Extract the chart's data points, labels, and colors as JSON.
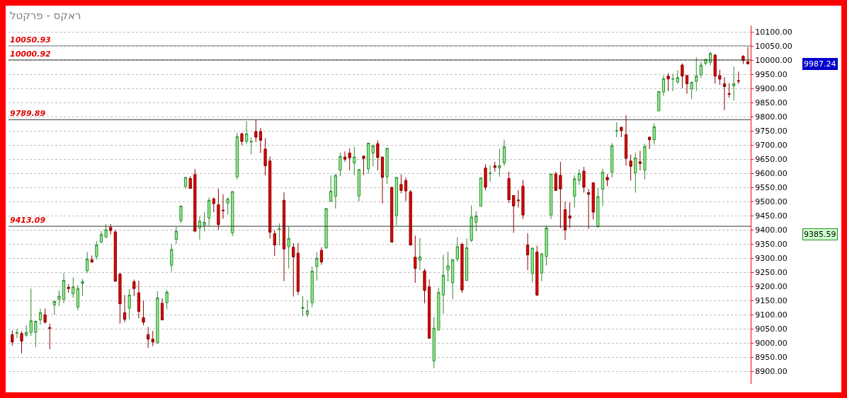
{
  "chart_data": {
    "type": "candlestick",
    "title": "ראקס - פרקטל",
    "categories": [
      null,
      null,
      null,
      null,
      null,
      null,
      null,
      null,
      null,
      null,
      null,
      null,
      null,
      null,
      null,
      null,
      null,
      null,
      null,
      null,
      null,
      null,
      null,
      null,
      null,
      null,
      null,
      null,
      null,
      null,
      null,
      null,
      null,
      null,
      null,
      null,
      null,
      null,
      null,
      null,
      null,
      null,
      null,
      null,
      null,
      null,
      null,
      null,
      null,
      null,
      null,
      null,
      null,
      null,
      null,
      null,
      null,
      null,
      null,
      null,
      null,
      null,
      null,
      null,
      null,
      null,
      null,
      null,
      null,
      null,
      null,
      null,
      null,
      null,
      null,
      null,
      null,
      null,
      null,
      null,
      null,
      null,
      null,
      null,
      null,
      null,
      null,
      null,
      null,
      null,
      null,
      null,
      null,
      null,
      null,
      null,
      null,
      null,
      null,
      null,
      null,
      null,
      null,
      null,
      null,
      null,
      null,
      null,
      null,
      null,
      null,
      null,
      null,
      null,
      null,
      null,
      null,
      null,
      null,
      null,
      null,
      null,
      null,
      null,
      null,
      null,
      null,
      null,
      null,
      null,
      null,
      null,
      null,
      null,
      null,
      null,
      null,
      null,
      null,
      null,
      null,
      null,
      null,
      null,
      null,
      null,
      null,
      null,
      null,
      null,
      null,
      null,
      null,
      null,
      null,
      null,
      null,
      null
    ],
    "ohlc": [
      [
        9030,
        9045,
        8991,
        9004
      ],
      [
        9035,
        9050,
        9018,
        9037
      ],
      [
        9034,
        9042,
        8964,
        9007
      ],
      [
        9028,
        9063,
        9022,
        9038
      ],
      [
        9038,
        9193,
        9026,
        9079
      ],
      [
        9038,
        9080,
        8986,
        9077
      ],
      [
        9082,
        9122,
        9065,
        9108
      ],
      [
        9100,
        9122,
        9069,
        9074
      ],
      [
        9055,
        9069,
        8979,
        9052
      ],
      [
        9135,
        9151,
        9100,
        9147
      ],
      [
        9155,
        9186,
        9131,
        9166
      ],
      [
        9155,
        9248,
        9141,
        9222
      ],
      [
        9197,
        9209,
        9178,
        9193
      ],
      [
        9174,
        9232,
        9160,
        9199
      ],
      [
        9127,
        9205,
        9116,
        9193
      ],
      [
        9211,
        9227,
        9166,
        9217
      ],
      [
        9256,
        9322,
        9248,
        9297
      ],
      [
        9295,
        9310,
        9283,
        9287
      ],
      [
        9306,
        9361,
        9295,
        9347
      ],
      [
        9357,
        9396,
        9353,
        9384
      ],
      [
        9375,
        9421,
        9372,
        9401
      ],
      [
        9409,
        9421,
        9384,
        9398
      ],
      [
        9393,
        9400,
        9217,
        9219
      ],
      [
        9244,
        9248,
        9069,
        9139
      ],
      [
        9108,
        9170,
        9074,
        9084
      ],
      [
        9123,
        9191,
        9084,
        9170
      ],
      [
        9217,
        9225,
        9166,
        9193
      ],
      [
        9178,
        9221,
        9088,
        9112
      ],
      [
        9090,
        9151,
        9063,
        9074
      ],
      [
        9030,
        9057,
        8983,
        9014
      ],
      [
        9014,
        9043,
        8989,
        9004
      ],
      [
        9001,
        9183,
        8997,
        9160
      ],
      [
        9141,
        9158,
        9082,
        9082
      ],
      [
        9143,
        9188,
        9119,
        9180
      ],
      [
        9275,
        9349,
        9253,
        9331
      ],
      [
        9367,
        9411,
        9351,
        9396
      ],
      [
        9433,
        9485,
        9425,
        9485
      ],
      [
        9554,
        9586,
        9546,
        9586
      ],
      [
        9582,
        9590,
        9546,
        9547
      ],
      [
        9596,
        9616,
        9392,
        9396
      ],
      [
        9407,
        9448,
        9365,
        9431
      ],
      [
        9417,
        9463,
        9396,
        9427
      ],
      [
        9442,
        9515,
        9414,
        9505
      ],
      [
        9510,
        9515,
        9463,
        9493
      ],
      [
        9489,
        9546,
        9400,
        9419
      ],
      [
        9470,
        9526,
        9439,
        9468
      ],
      [
        9495,
        9515,
        9454,
        9509
      ],
      [
        9390,
        9536,
        9378,
        9536
      ],
      [
        9588,
        9744,
        9579,
        9730
      ],
      [
        9740,
        9744,
        9699,
        9713
      ],
      [
        9713,
        9785,
        9705,
        9740
      ],
      [
        9711,
        9728,
        9668,
        9713
      ],
      [
        9748,
        9789,
        9711,
        9728
      ],
      [
        9748,
        9761,
        9672,
        9717
      ],
      [
        9686,
        9724,
        9593,
        9627
      ],
      [
        9644,
        9660,
        9370,
        9392
      ],
      [
        9387,
        9400,
        9308,
        9347
      ],
      [
        9402,
        9423,
        9345,
        9404
      ],
      [
        9505,
        9533,
        9219,
        9333
      ],
      [
        9341,
        9411,
        9264,
        9370
      ],
      [
        9339,
        9354,
        9165,
        9305
      ],
      [
        9318,
        9354,
        9170,
        9183
      ],
      [
        9123,
        9166,
        9095,
        9126
      ],
      [
        9102,
        9152,
        9092,
        9114
      ],
      [
        9143,
        9271,
        9127,
        9254
      ],
      [
        9271,
        9322,
        9221,
        9300
      ],
      [
        9328,
        9339,
        9277,
        9287
      ],
      [
        9336,
        9476,
        9336,
        9476
      ],
      [
        9501,
        9593,
        9501,
        9537
      ],
      [
        9519,
        9598,
        9476,
        9593
      ],
      [
        9612,
        9674,
        9590,
        9660
      ],
      [
        9658,
        9678,
        9641,
        9650
      ],
      [
        9672,
        9688,
        9611,
        9655
      ],
      [
        9637,
        9694,
        9593,
        9658
      ],
      [
        9520,
        9614,
        9501,
        9614
      ],
      [
        9661,
        9661,
        9594,
        9653
      ],
      [
        9616,
        9707,
        9598,
        9707
      ],
      [
        9672,
        9703,
        9625,
        9697
      ],
      [
        9705,
        9717,
        9610,
        9656
      ],
      [
        9658,
        9658,
        9494,
        9586
      ],
      [
        9588,
        9689,
        9563,
        9689
      ],
      [
        9551,
        9551,
        9357,
        9357
      ],
      [
        9450,
        9586,
        9417,
        9586
      ],
      [
        9561,
        9596,
        9530,
        9540
      ],
      [
        9575,
        9585,
        9502,
        9538
      ],
      [
        9535,
        9541,
        9344,
        9347
      ],
      [
        9304,
        9380,
        9213,
        9264
      ],
      [
        9293,
        9372,
        9258,
        9305
      ],
      [
        9255,
        9263,
        9141,
        9186
      ],
      [
        9199,
        9225,
        9017,
        9017
      ],
      [
        8937,
        9092,
        8911,
        9053
      ],
      [
        9046,
        9195,
        9046,
        9179
      ],
      [
        9170,
        9312,
        9104,
        9240
      ],
      [
        9259,
        9323,
        9217,
        9273
      ],
      [
        9213,
        9295,
        9155,
        9295
      ],
      [
        9297,
        9374,
        9287,
        9341
      ],
      [
        9349,
        9355,
        9178,
        9188
      ],
      [
        9221,
        9370,
        9221,
        9337
      ],
      [
        9363,
        9487,
        9357,
        9446
      ],
      [
        9427,
        9466,
        9396,
        9450
      ],
      [
        9484,
        9584,
        9484,
        9584
      ],
      [
        9619,
        9632,
        9540,
        9551
      ],
      [
        9599,
        9629,
        9571,
        9601
      ],
      [
        9627,
        9641,
        9606,
        9621
      ],
      [
        9619,
        9688,
        9588,
        9627
      ],
      [
        9637,
        9719,
        9627,
        9694
      ],
      [
        9582,
        9606,
        9495,
        9507
      ],
      [
        9522,
        9522,
        9390,
        9485
      ],
      [
        9506,
        9541,
        9479,
        9504
      ],
      [
        9555,
        9577,
        9439,
        9453
      ],
      [
        9347,
        9388,
        9258,
        9312
      ],
      [
        9246,
        9336,
        9214,
        9336
      ],
      [
        9322,
        9344,
        9166,
        9170
      ],
      [
        9248,
        9316,
        9219,
        9316
      ],
      [
        9306,
        9415,
        9275,
        9407
      ],
      [
        9453,
        9598,
        9439,
        9598
      ],
      [
        9598,
        9606,
        9540,
        9540
      ],
      [
        9593,
        9641,
        9407,
        9545
      ],
      [
        9472,
        9501,
        9365,
        9400
      ],
      [
        9450,
        9497,
        9407,
        9442
      ],
      [
        9519,
        9593,
        9479,
        9581
      ],
      [
        9575,
        9615,
        9559,
        9600
      ],
      [
        9608,
        9623,
        9532,
        9551
      ],
      [
        9532,
        9545,
        9404,
        9526
      ],
      [
        9567,
        9567,
        9437,
        9463
      ],
      [
        9411,
        9549,
        9409,
        9518
      ],
      [
        9544,
        9617,
        9485,
        9604
      ],
      [
        9586,
        9598,
        9555,
        9577
      ],
      [
        9604,
        9707,
        9586,
        9698
      ],
      [
        9749,
        9781,
        9728,
        9751
      ],
      [
        9763,
        9765,
        9728,
        9751
      ],
      [
        9737,
        9806,
        9627,
        9653
      ],
      [
        9644,
        9666,
        9575,
        9625
      ],
      [
        9602,
        9674,
        9532,
        9655
      ],
      [
        9641,
        9680,
        9610,
        9635
      ],
      [
        9612,
        9705,
        9579,
        9695
      ],
      [
        9728,
        9730,
        9686,
        9719
      ],
      [
        9719,
        9777,
        9702,
        9765
      ],
      [
        9821,
        9890,
        9820,
        9890
      ],
      [
        9888,
        9946,
        9874,
        9935
      ],
      [
        9944,
        9954,
        9891,
        9934
      ],
      [
        9933,
        9952,
        9891,
        9934
      ],
      [
        9923,
        9964,
        9917,
        9939
      ],
      [
        9983,
        9989,
        9901,
        9944
      ],
      [
        9946,
        9948,
        9882,
        9917
      ],
      [
        9898,
        9925,
        9863,
        9922
      ],
      [
        9925,
        10010,
        9891,
        9944
      ],
      [
        9948,
        9995,
        9937,
        9983
      ],
      [
        9989,
        10005,
        9982,
        10003
      ],
      [
        9993,
        10030,
        9982,
        10024
      ],
      [
        10018,
        10022,
        9917,
        9944
      ],
      [
        9946,
        9966,
        9913,
        9933
      ],
      [
        9917,
        9940,
        9824,
        9907
      ],
      [
        9882,
        9919,
        9868,
        9880
      ],
      [
        9909,
        9977,
        9857,
        9917
      ],
      [
        9928,
        9960,
        9917,
        9926
      ],
      [
        10014,
        10018,
        9987,
        9999
      ],
      [
        9995,
        10047,
        9985,
        9987.24
      ]
    ],
    "ylim": [
      8856,
      10123
    ],
    "yticks": [
      {
        "value": 8900,
        "label": "8900.00"
      },
      {
        "value": 8950,
        "label": "8950.00"
      },
      {
        "value": 9000,
        "label": "9000.00"
      },
      {
        "value": 9050,
        "label": "9050.00"
      },
      {
        "value": 9100,
        "label": "9100.00"
      },
      {
        "value": 9150,
        "label": "9150.00"
      },
      {
        "value": 9200,
        "label": "9200.00"
      },
      {
        "value": 9250,
        "label": "9250.00"
      },
      {
        "value": 9300,
        "label": "9300.00"
      },
      {
        "value": 9350,
        "label": "9350.00"
      },
      {
        "value": 9400,
        "label": "9400.00"
      },
      {
        "value": 9450,
        "label": "9450.00"
      },
      {
        "value": 9500,
        "label": "9500.00"
      },
      {
        "value": 9550,
        "label": "9550.00"
      },
      {
        "value": 9600,
        "label": "9600.00"
      },
      {
        "value": 9650,
        "label": "9650.00"
      },
      {
        "value": 9700,
        "label": "9700.00"
      },
      {
        "value": 9750,
        "label": "9750.00"
      },
      {
        "value": 9800,
        "label": "9800.00"
      },
      {
        "value": 9850,
        "label": "9850.00"
      },
      {
        "value": 9900,
        "label": "9900.00"
      },
      {
        "value": 9950,
        "label": "9950.00"
      },
      {
        "value": 10000,
        "label": "10000.00"
      },
      {
        "value": 10050,
        "label": "10050.00"
      },
      {
        "value": 10100,
        "label": "10100.00"
      }
    ],
    "ref_lines": [
      {
        "axis": "y",
        "value": 10050.93,
        "label": "10050.93",
        "color": "#808080"
      },
      {
        "axis": "y",
        "value": 10000.92,
        "label": "10000.92",
        "color": "#333333"
      },
      {
        "axis": "y",
        "value": 9789.89,
        "label": "9789.89",
        "color": "#333333"
      },
      {
        "axis": "y",
        "value": 9413.09,
        "label": "9413.09",
        "color": "#333333"
      }
    ],
    "annotations": [
      "9987.24",
      "9385.59"
    ],
    "grid": "y",
    "tick_labels": "y"
  }
}
